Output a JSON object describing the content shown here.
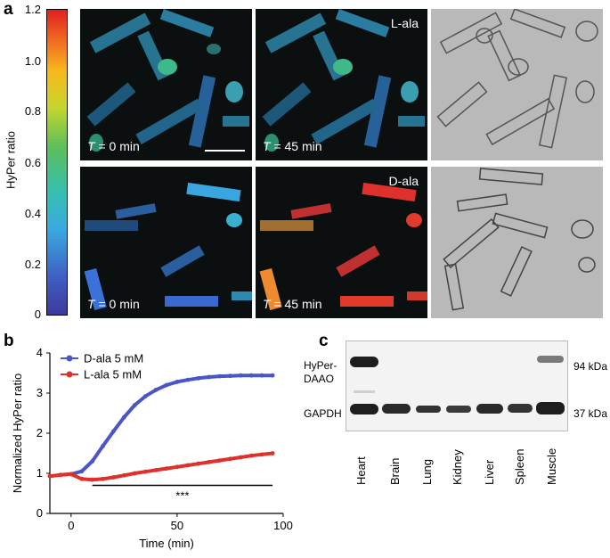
{
  "panels": {
    "a": {
      "letter": "a",
      "colorbar": {
        "label": "HyPer ratio",
        "ticks": [
          "1.2",
          "1.0",
          "0.8",
          "0.6",
          "0.4",
          "0.2",
          "0"
        ]
      },
      "images": {
        "lala_t0_time": "= 0 min",
        "lala_t45_time": "= 45 min",
        "dala_t0_time": "= 0 min",
        "dala_t45_time": "= 45 min",
        "time_var": "T",
        "lala_label": "L-ala",
        "dala_label": "D-ala"
      }
    },
    "b": {
      "letter": "b",
      "significance": "***"
    },
    "c": {
      "letter": "c",
      "band_labels": {
        "hyper_daao": "HyPer-\nDAAO",
        "gapdh": "GAPDH",
        "kda_94": "94 kDa",
        "kda_37": "37 kDa"
      },
      "lanes": [
        "Heart",
        "Brain",
        "Lung",
        "Kidney",
        "Liver",
        "Spleen",
        "Muscle"
      ]
    }
  },
  "chart_data": {
    "type": "line",
    "xlabel": "Time (min)",
    "ylabel": "Normalized HyPer ratio",
    "xlim": [
      -10,
      100
    ],
    "ylim": [
      0,
      4
    ],
    "xticks": [
      0,
      50,
      100
    ],
    "yticks": [
      0,
      1,
      2,
      3,
      4
    ],
    "legend_position": "top-left",
    "series": [
      {
        "name": "D-ala 5 mM",
        "color": "#4a55c8",
        "x": [
          -10,
          -5,
          0,
          5,
          10,
          15,
          20,
          25,
          30,
          35,
          40,
          45,
          50,
          55,
          60,
          65,
          70,
          75,
          80,
          85,
          90,
          95
        ],
        "y": [
          0.93,
          0.96,
          0.98,
          1.05,
          1.3,
          1.68,
          2.05,
          2.4,
          2.7,
          2.92,
          3.08,
          3.2,
          3.28,
          3.33,
          3.37,
          3.4,
          3.42,
          3.43,
          3.44,
          3.44,
          3.44,
          3.44
        ]
      },
      {
        "name": "L-ala 5 mM",
        "color": "#e0302b",
        "x": [
          -10,
          -5,
          0,
          5,
          10,
          15,
          20,
          25,
          30,
          35,
          40,
          45,
          50,
          55,
          60,
          65,
          70,
          75,
          80,
          85,
          90,
          95
        ],
        "y": [
          0.93,
          0.96,
          0.98,
          0.86,
          0.84,
          0.86,
          0.9,
          0.95,
          1.0,
          1.04,
          1.08,
          1.12,
          1.16,
          1.2,
          1.24,
          1.28,
          1.32,
          1.36,
          1.4,
          1.44,
          1.47,
          1.5
        ]
      }
    ],
    "significance_bar": {
      "x_start": 10,
      "x_end": 95,
      "y": 0.7
    }
  }
}
